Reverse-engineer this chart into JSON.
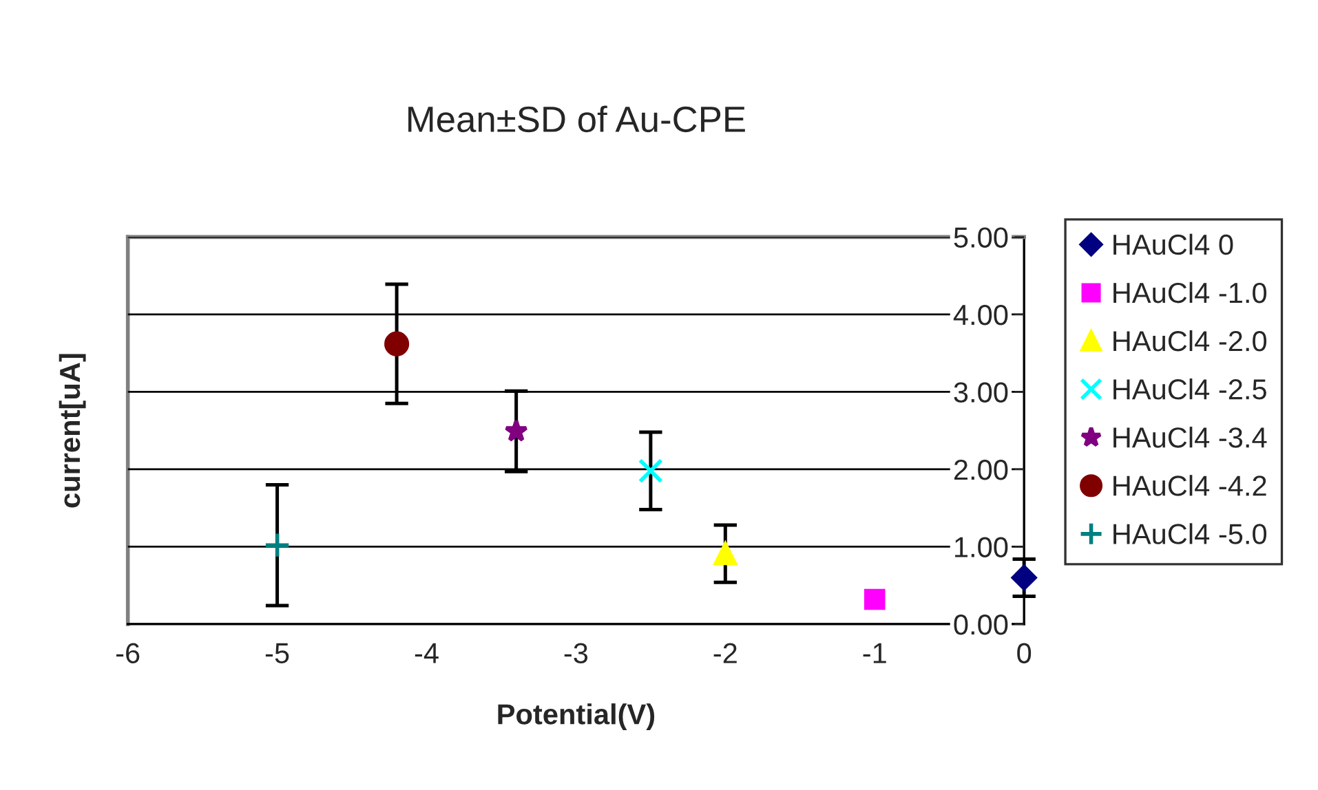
{
  "chart_data": {
    "type": "scatter",
    "title": "Mean±SD of Au-CPE",
    "xlabel": "Potential(V)",
    "ylabel": "current[uA]",
    "xlim": [
      -6,
      0
    ],
    "xticks": [
      -6,
      -5,
      -4,
      -3,
      -2,
      -1,
      0
    ],
    "ylim": [
      0,
      5
    ],
    "yticks": [
      {
        "value": 0,
        "label": "0.00"
      },
      {
        "value": 1,
        "label": "1.00"
      },
      {
        "value": 2,
        "label": "2.00"
      },
      {
        "value": 3,
        "label": "3.00"
      },
      {
        "value": 4,
        "label": "4.00"
      },
      {
        "value": 5,
        "label": "5.00"
      }
    ],
    "grid": "y",
    "legend": "right",
    "series": [
      {
        "name": "HAuCl4 0",
        "color": "#000080",
        "marker": "diamond",
        "x": [
          0
        ],
        "values": [
          0.6
        ],
        "errors": [
          0.24
        ]
      },
      {
        "name": "HAuCl4 -1.0",
        "color": "#ff00ff",
        "marker": "square",
        "x": [
          -1.0
        ],
        "values": [
          0.32
        ]
      },
      {
        "name": "HAuCl4 -2.0",
        "color": "#ffff00",
        "marker": "triangle",
        "x": [
          -2.0
        ],
        "values": [
          0.91
        ],
        "errors": [
          0.37
        ]
      },
      {
        "name": "HAuCl4 -2.5",
        "color": "#00ffff",
        "marker": "x",
        "x": [
          -2.5
        ],
        "values": [
          1.98
        ],
        "errors": [
          0.5
        ]
      },
      {
        "name": "HAuCl4 -3.4",
        "color": "#800080",
        "marker": "star",
        "x": [
          -3.4
        ],
        "values": [
          2.49
        ],
        "errors": [
          0.52
        ]
      },
      {
        "name": "HAuCl4 -4.2",
        "color": "#800000",
        "marker": "circle",
        "x": [
          -4.2
        ],
        "values": [
          3.62
        ],
        "errors": [
          0.77
        ]
      },
      {
        "name": "HAuCl4 -5.0",
        "color": "#008080",
        "marker": "cross",
        "x": [
          -5.0
        ],
        "values": [
          1.02
        ],
        "errors": [
          0.78
        ]
      }
    ]
  }
}
